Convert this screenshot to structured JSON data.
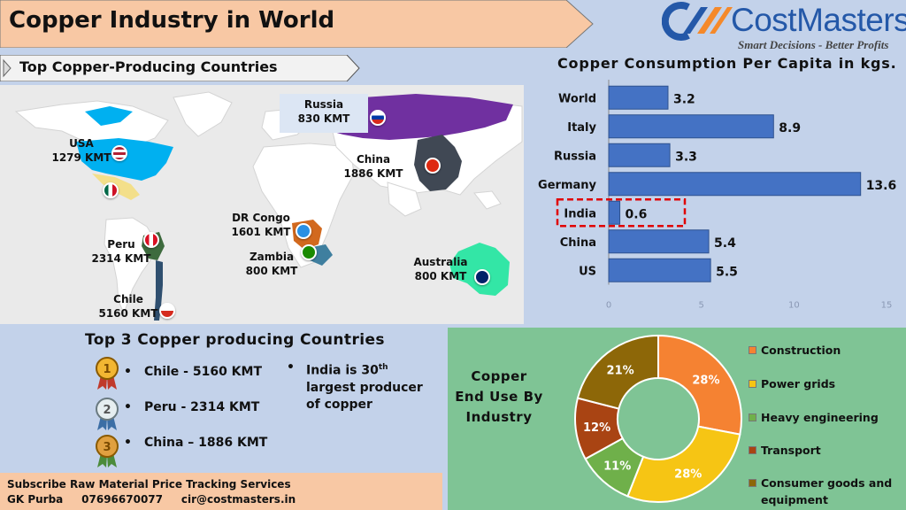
{
  "header": {
    "title": "Copper Industry in World",
    "logo_text": "CostMasters",
    "logo_tagline": "Smart Decisions - Better Profits"
  },
  "map": {
    "subtitle": "Top Copper-Producing Countries",
    "countries": [
      {
        "name": "Russia",
        "value": "830 KMT",
        "color": "#7030a0"
      },
      {
        "name": "USA",
        "value": "1279 KMT",
        "color": "#00b0f0"
      },
      {
        "name": "China",
        "value": "1886 KMT",
        "color": "#404854"
      },
      {
        "name": "DR Congo",
        "value": "1601 KMT",
        "color": "#d2691e"
      },
      {
        "name": "Zambia",
        "value": "800 KMT",
        "color": "#3f7f9f"
      },
      {
        "name": "Peru",
        "value": "2314 KMT",
        "color": "#3e6b3e"
      },
      {
        "name": "Australia",
        "value": "800 KMT",
        "color": "#33e6a6"
      },
      {
        "name": "Chile",
        "value": "5160 KMT",
        "color": "#2f4f6f"
      }
    ]
  },
  "chart_data": [
    {
      "type": "bar",
      "orientation": "horizontal",
      "title": "Copper Consumption Per Capita in kgs.",
      "categories": [
        "World",
        "Italy",
        "Russia",
        "Germany",
        "India",
        "China",
        "US"
      ],
      "values": [
        3.2,
        8.9,
        3.3,
        13.6,
        0.6,
        5.4,
        5.5
      ],
      "value_labels": [
        "3.2",
        "8.9",
        "3.3",
        "13.6",
        "0.6",
        "5.4",
        "5.5"
      ],
      "xlim": [
        0,
        15
      ],
      "xticks": [
        "0",
        "5",
        "10",
        "15"
      ],
      "highlight": "India",
      "bar_color": "#4472c4"
    },
    {
      "type": "pie",
      "variant": "donut",
      "title": "Copper End Use By Industry",
      "categories": [
        "Construction",
        "Power grids",
        "Heavy engineering",
        "Transport",
        "Consumer goods and equipment"
      ],
      "values": [
        28,
        28,
        11,
        12,
        21
      ],
      "value_labels": [
        "28%",
        "28%",
        "11%",
        "12%",
        "21%"
      ],
      "colors": [
        "#f58232",
        "#f6c514",
        "#6fb04a",
        "#a94413",
        "#8d6708"
      ],
      "legend_position": "right"
    }
  ],
  "top3": {
    "title": "Top 3 Copper producing Countries",
    "items": [
      {
        "rank": "1",
        "text": "Chile -  5160 KMT"
      },
      {
        "rank": "2",
        "text": "Peru -  2314 KMT"
      },
      {
        "rank": "3",
        "text": "China – 1886 KMT"
      }
    ],
    "bullet": "•",
    "note_prefix": "India is 30",
    "note_sup": "th",
    "note_suffix": " largest producer of copper"
  },
  "footer": {
    "line1": "Subscribe Raw Material Price Tracking Services",
    "line2": "GK Purba     07696670077     cir@costmasters.in"
  }
}
